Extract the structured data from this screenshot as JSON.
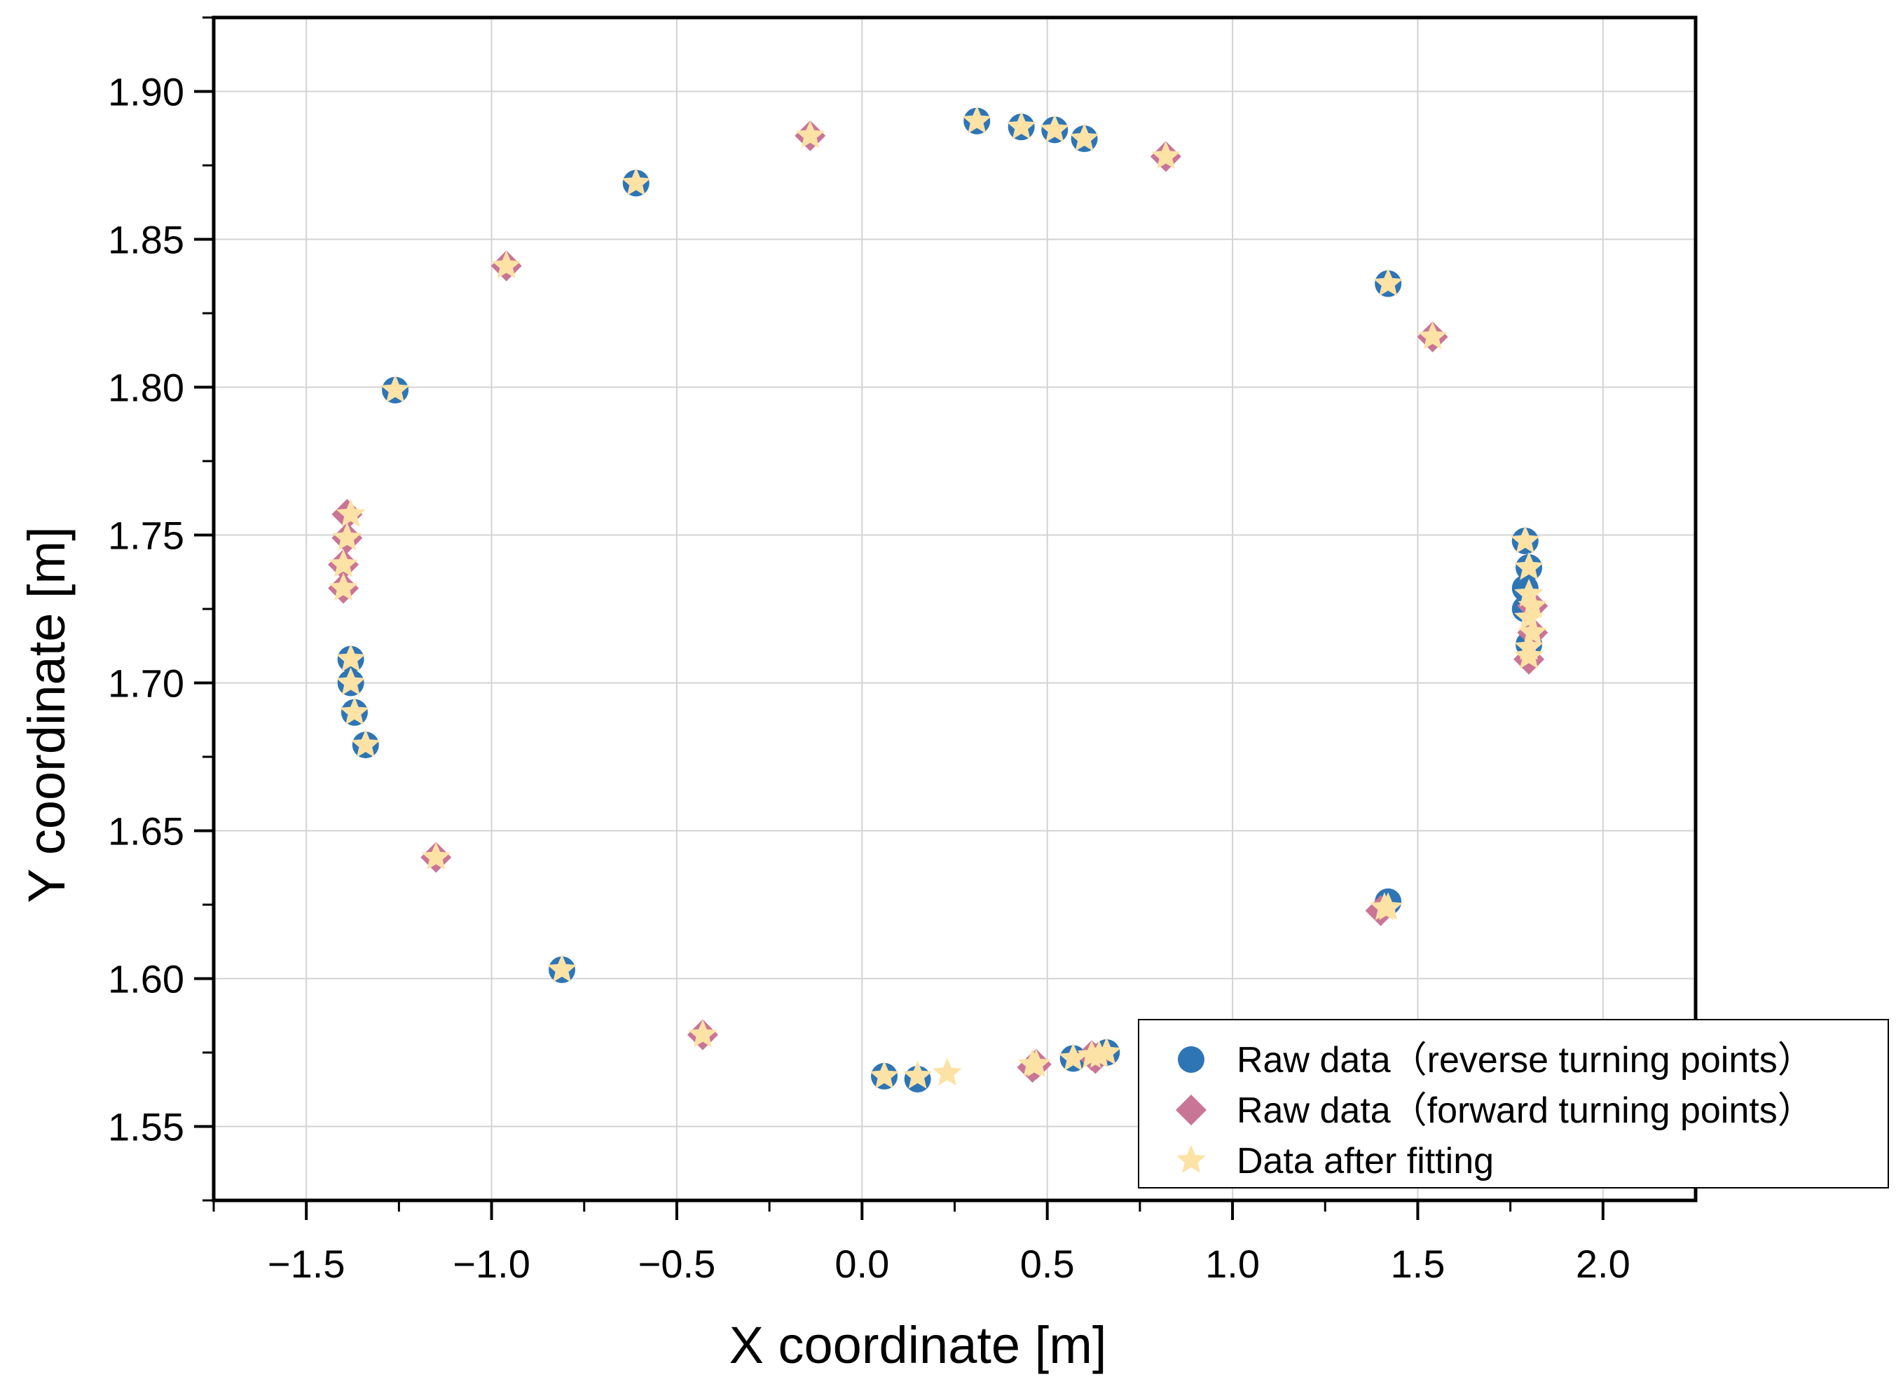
{
  "chart_data": {
    "type": "scatter",
    "title": "",
    "xlabel": "X coordinate [m]",
    "ylabel": "Y coordinate [m]",
    "xlim": [
      -1.75,
      2.25
    ],
    "ylim": [
      1.525,
      1.925
    ],
    "xticks": [
      -1.5,
      -1.0,
      -0.5,
      0.0,
      0.5,
      1.0,
      1.5,
      2.0
    ],
    "xtick_labels": [
      "−1.5",
      "−1.0",
      "−0.5",
      "0.0",
      "0.5",
      "1.0",
      "1.5",
      "2.0"
    ],
    "yticks": [
      1.55,
      1.6,
      1.65,
      1.7,
      1.75,
      1.8,
      1.85,
      1.9
    ],
    "ytick_labels": [
      "1.55",
      "1.60",
      "1.65",
      "1.70",
      "1.75",
      "1.80",
      "1.85",
      "1.90"
    ],
    "grid": true,
    "legend_position": "bottom-right",
    "series": [
      {
        "name": "Raw data（reverse turning points）",
        "marker": "circle",
        "color": "#2e75b6",
        "points": [
          [
            -1.26,
            1.799
          ],
          [
            -1.38,
            1.708
          ],
          [
            -1.38,
            1.7
          ],
          [
            -1.37,
            1.69
          ],
          [
            -1.34,
            1.679
          ],
          [
            -0.81,
            1.603
          ],
          [
            -0.61,
            1.869
          ],
          [
            0.31,
            1.89
          ],
          [
            0.43,
            1.888
          ],
          [
            0.52,
            1.887
          ],
          [
            0.6,
            1.884
          ],
          [
            1.42,
            1.835
          ],
          [
            1.79,
            1.748
          ],
          [
            1.8,
            1.739
          ],
          [
            1.79,
            1.732
          ],
          [
            1.79,
            1.725
          ],
          [
            1.8,
            1.713
          ],
          [
            1.42,
            1.626
          ],
          [
            0.06,
            1.567
          ],
          [
            0.15,
            1.566
          ],
          [
            0.57,
            1.573
          ],
          [
            0.66,
            1.575
          ]
        ]
      },
      {
        "name": "Raw data（forward turning points）",
        "marker": "diamond",
        "color": "#c97596",
        "points": [
          [
            -1.39,
            1.757
          ],
          [
            -1.39,
            1.749
          ],
          [
            -1.4,
            1.74
          ],
          [
            -1.4,
            1.732
          ],
          [
            -1.15,
            1.641
          ],
          [
            -0.96,
            1.841
          ],
          [
            -0.43,
            1.581
          ],
          [
            -0.14,
            1.885
          ],
          [
            0.82,
            1.878
          ],
          [
            1.54,
            1.817
          ],
          [
            1.81,
            1.726
          ],
          [
            1.81,
            1.717
          ],
          [
            1.8,
            1.708
          ],
          [
            1.4,
            1.623
          ],
          [
            0.46,
            1.57
          ],
          [
            0.47,
            1.571
          ],
          [
            0.62,
            1.574
          ],
          [
            0.63,
            1.573
          ]
        ]
      },
      {
        "name": "Data after fitting",
        "marker": "star",
        "color": "#fde2a6",
        "points": [
          [
            -1.26,
            1.799
          ],
          [
            -1.38,
            1.708
          ],
          [
            -1.38,
            1.7
          ],
          [
            -1.37,
            1.69
          ],
          [
            -1.34,
            1.679
          ],
          [
            -0.81,
            1.603
          ],
          [
            -0.61,
            1.869
          ],
          [
            0.31,
            1.89
          ],
          [
            0.43,
            1.888
          ],
          [
            0.52,
            1.887
          ],
          [
            0.6,
            1.884
          ],
          [
            1.42,
            1.835
          ],
          [
            1.79,
            1.748
          ],
          [
            1.8,
            1.739
          ],
          [
            1.8,
            1.73
          ],
          [
            1.8,
            1.722
          ],
          [
            1.8,
            1.712
          ],
          [
            1.42,
            1.624
          ],
          [
            0.06,
            1.567
          ],
          [
            0.15,
            1.567
          ],
          [
            0.23,
            1.568
          ],
          [
            0.57,
            1.573
          ],
          [
            0.66,
            1.575
          ],
          [
            -1.38,
            1.757
          ],
          [
            -1.39,
            1.749
          ],
          [
            -1.4,
            1.74
          ],
          [
            -1.4,
            1.732
          ],
          [
            -1.15,
            1.641
          ],
          [
            -0.96,
            1.841
          ],
          [
            -0.43,
            1.581
          ],
          [
            -0.14,
            1.885
          ],
          [
            0.82,
            1.878
          ],
          [
            1.54,
            1.817
          ],
          [
            1.81,
            1.726
          ],
          [
            1.81,
            1.717
          ],
          [
            1.8,
            1.709
          ],
          [
            1.41,
            1.624
          ],
          [
            0.46,
            1.571
          ],
          [
            0.47,
            1.571
          ],
          [
            0.62,
            1.574
          ],
          [
            0.64,
            1.574
          ]
        ]
      }
    ]
  }
}
